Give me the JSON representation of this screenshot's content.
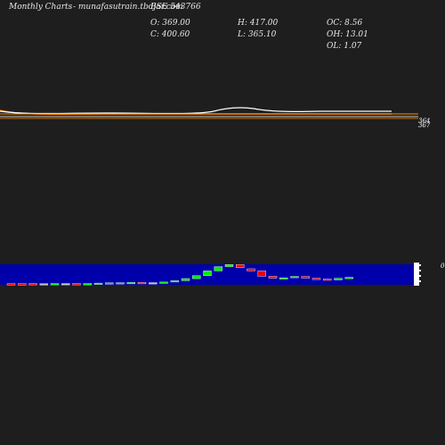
{
  "header": {
    "title": "Monthly Charts",
    "site": "- munafasutrain.tbdjar.com",
    "symbol": "BSE 543766",
    "open_label": "O: 369.00",
    "close_label": "C: 400.60",
    "high_label": "H: 417.00",
    "low_label": "L: 365.10",
    "oc_label": "OC: 8.56",
    "oh_label": "OH: 13.01",
    "ol_label": "OL: 1.07"
  },
  "colors": {
    "background": "#1e1e1e",
    "up": "#00ee00",
    "down": "#ee0000",
    "flat": "#c0c0c0",
    "volume_band": "#0000aa",
    "ma_orange": "#ff8c00",
    "ma_white": "#ffffff"
  },
  "chart_data": {
    "type": "candlestick",
    "price_axis_labels": [
      "364",
      "367"
    ],
    "volume_axis_label": "0",
    "candles": [
      {
        "o": 366.0,
        "c": 365.8
      },
      {
        "o": 366.0,
        "c": 365.9
      },
      {
        "o": 366.1,
        "c": 365.9
      },
      {
        "o": 366.0,
        "c": 366.0
      },
      {
        "o": 366.0,
        "c": 366.1
      },
      {
        "o": 366.1,
        "c": 366.1
      },
      {
        "o": 366.1,
        "c": 366.0
      },
      {
        "o": 366.0,
        "c": 366.1
      },
      {
        "o": 366.0,
        "c": 366.3
      },
      {
        "o": 366.3,
        "c": 366.4
      },
      {
        "o": 366.4,
        "c": 366.5
      },
      {
        "o": 366.5,
        "c": 366.6
      },
      {
        "o": 366.6,
        "c": 366.5
      },
      {
        "o": 366.5,
        "c": 366.5
      },
      {
        "o": 366.6,
        "c": 366.8
      },
      {
        "o": 366.8,
        "c": 367.4
      },
      {
        "o": 367.4,
        "c": 368.4
      },
      {
        "o": 368.4,
        "c": 369.8
      },
      {
        "o": 369.8,
        "c": 372.0
      },
      {
        "o": 372.0,
        "c": 374.0
      },
      {
        "o": 374.0,
        "c": 375.0
      },
      {
        "o": 375.0,
        "c": 373.5
      },
      {
        "o": 373.0,
        "c": 372.0
      },
      {
        "o": 372.0,
        "c": 369.5
      },
      {
        "o": 369.5,
        "c": 368.6
      },
      {
        "o": 368.4,
        "c": 368.8
      },
      {
        "o": 368.8,
        "c": 369.4
      },
      {
        "o": 369.4,
        "c": 368.6
      },
      {
        "o": 368.6,
        "c": 368.2
      },
      {
        "o": 368.2,
        "c": 368.0
      },
      {
        "o": 367.8,
        "c": 368.5
      },
      {
        "o": 368.5,
        "c": 369.0
      }
    ]
  }
}
